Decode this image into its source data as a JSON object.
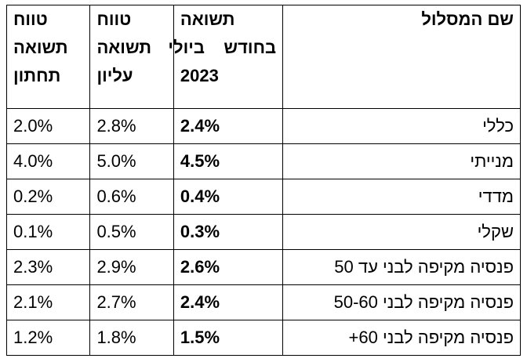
{
  "table": {
    "headers": {
      "name": [
        "שם המסלול"
      ],
      "return": [
        "תשואה",
        "בחודש    ביולי",
        "2023"
      ],
      "upper": [
        "טווח",
        "תשואה",
        "עליון"
      ],
      "lower": [
        "טווח",
        "תשואה",
        "תחתון"
      ]
    },
    "rows": [
      {
        "name": "כללי",
        "return": "2.4%",
        "upper": "2.8%",
        "lower": "2.0%"
      },
      {
        "name": "מנייתי",
        "return": "4.5%",
        "upper": "5.0%",
        "lower": "4.0%"
      },
      {
        "name": "מדדי",
        "return": "0.4%",
        "upper": "0.6%",
        "lower": "0.2%"
      },
      {
        "name": "שקלי",
        "return": "0.3%",
        "upper": "0.5%",
        "lower": "0.1%"
      },
      {
        "name": "פנסיה מקיפה לבני עד 50",
        "return": "2.6%",
        "upper": "2.9%",
        "lower": "2.3%"
      },
      {
        "name": "פנסיה מקיפה לבני 50-60",
        "return": "2.4%",
        "upper": "2.7%",
        "lower": "2.1%"
      },
      {
        "name": "פנסיה מקיפה לבני 60+",
        "return": "1.5%",
        "upper": "1.8%",
        "lower": "1.2%"
      }
    ]
  }
}
